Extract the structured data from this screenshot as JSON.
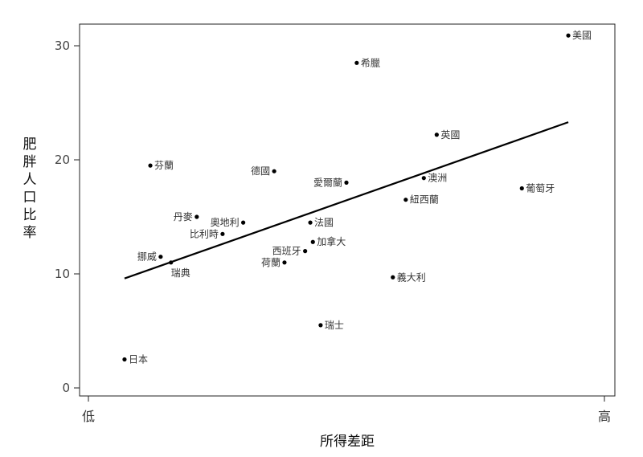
{
  "chart_data": {
    "type": "scatter",
    "xlabel": "所得差距",
    "ylabel": "肥胖人口比率",
    "x_tick_labels": [
      "低",
      "高"
    ],
    "ylim": [
      0,
      31
    ],
    "y_ticks": [
      0,
      10,
      20,
      30
    ],
    "grid": false,
    "trendline": {
      "x": [
        0.07,
        0.93
      ],
      "y": [
        9.6,
        23.3
      ]
    },
    "points": [
      {
        "label": "日本",
        "x": 0.07,
        "y": 2.5,
        "label_pos": "right"
      },
      {
        "label": "芬蘭",
        "x": 0.12,
        "y": 19.5,
        "label_pos": "right"
      },
      {
        "label": "挪威",
        "x": 0.14,
        "y": 11.5,
        "label_pos": "left"
      },
      {
        "label": "瑞典",
        "x": 0.16,
        "y": 11.0,
        "label_pos": "below"
      },
      {
        "label": "丹麥",
        "x": 0.21,
        "y": 15.0,
        "label_pos": "left"
      },
      {
        "label": "比利時",
        "x": 0.26,
        "y": 13.5,
        "label_pos": "left"
      },
      {
        "label": "奧地利",
        "x": 0.3,
        "y": 14.5,
        "label_pos": "left"
      },
      {
        "label": "德國",
        "x": 0.36,
        "y": 19.0,
        "label_pos": "left"
      },
      {
        "label": "荷蘭",
        "x": 0.38,
        "y": 11.0,
        "label_pos": "left"
      },
      {
        "label": "西班牙",
        "x": 0.42,
        "y": 12.0,
        "label_pos": "left"
      },
      {
        "label": "法國",
        "x": 0.43,
        "y": 14.5,
        "label_pos": "right"
      },
      {
        "label": "加拿大",
        "x": 0.435,
        "y": 12.8,
        "label_pos": "right"
      },
      {
        "label": "瑞士",
        "x": 0.45,
        "y": 5.5,
        "label_pos": "right"
      },
      {
        "label": "愛爾蘭",
        "x": 0.5,
        "y": 18.0,
        "label_pos": "left"
      },
      {
        "label": "希臘",
        "x": 0.52,
        "y": 28.5,
        "label_pos": "right"
      },
      {
        "label": "義大利",
        "x": 0.59,
        "y": 9.7,
        "label_pos": "right"
      },
      {
        "label": "紐西蘭",
        "x": 0.615,
        "y": 16.5,
        "label_pos": "right"
      },
      {
        "label": "澳洲",
        "x": 0.65,
        "y": 18.4,
        "label_pos": "right"
      },
      {
        "label": "英國",
        "x": 0.675,
        "y": 22.2,
        "label_pos": "right"
      },
      {
        "label": "葡萄牙",
        "x": 0.84,
        "y": 17.5,
        "label_pos": "right"
      },
      {
        "label": "美國",
        "x": 0.93,
        "y": 30.9,
        "label_pos": "right"
      }
    ]
  }
}
